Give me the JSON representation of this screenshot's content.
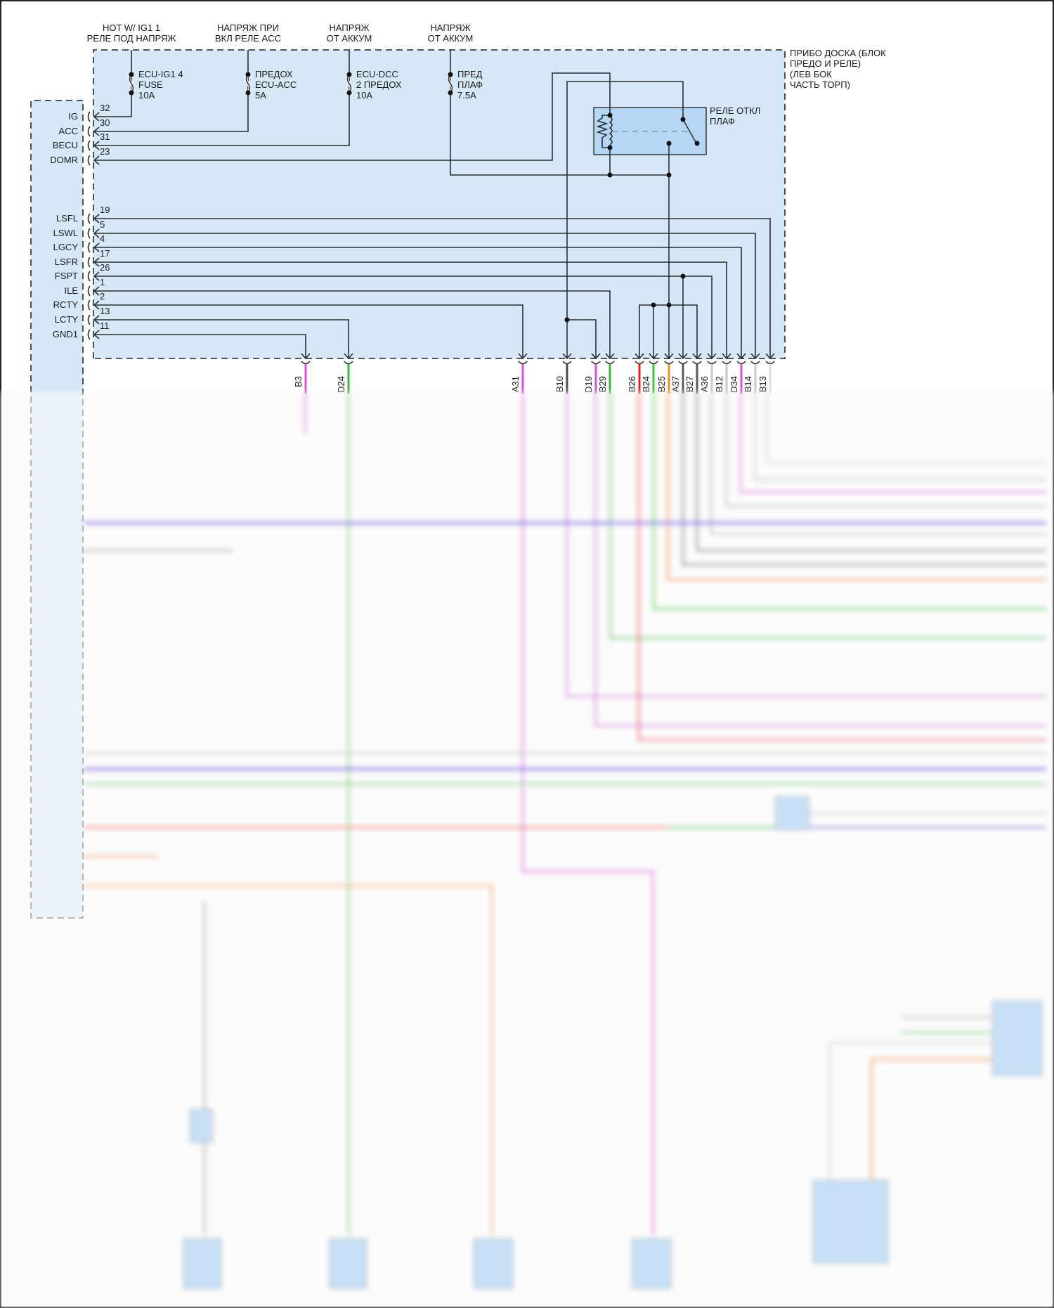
{
  "supply_labels": [
    {
      "line1": "HOT W/ IG1 1",
      "line2": "РЕЛЕ ПОД НАПРЯЖ"
    },
    {
      "line1": "НАПРЯЖ ПРИ",
      "line2": "ВКЛ РЕЛЕ ACC"
    },
    {
      "line1": "НАПРЯЖ",
      "line2": "ОТ АККУМ"
    },
    {
      "line1": "НАПРЯЖ",
      "line2": "ОТ АККУМ"
    }
  ],
  "fuses": [
    {
      "line1": "ECU-IG1 4",
      "line2": "FUSE",
      "line3": "10A"
    },
    {
      "line1": "ПРЕДОХ",
      "line2": "ECU-ACC",
      "line3": "5A"
    },
    {
      "line1": "ECU-DCC",
      "line2": "2 ПРЕДОХ",
      "line3": "10A"
    },
    {
      "line1": "ПРЕД",
      "line2": "ПЛАФ",
      "line3": "7.5A"
    }
  ],
  "block_label": [
    "ПРИБО ДОСКА (БЛОК",
    "ПРЕДО И РЕЛЕ)",
    "(ЛЕВ БОК",
    "ЧАСТЬ ТОРП)"
  ],
  "relay_label": [
    "РЕЛЕ ОТКЛ",
    "ПЛАФ"
  ],
  "ecu_pins": [
    {
      "name": "IG",
      "pin": "32"
    },
    {
      "name": "ACC",
      "pin": "30"
    },
    {
      "name": "BECU",
      "pin": "31"
    },
    {
      "name": "DOMR",
      "pin": "23"
    },
    {
      "name": "LSFL",
      "pin": "19"
    },
    {
      "name": "LSWL",
      "pin": "5"
    },
    {
      "name": "LGCY",
      "pin": "4"
    },
    {
      "name": "LSFR",
      "pin": "17"
    },
    {
      "name": "FSPT",
      "pin": "26"
    },
    {
      "name": "ILE",
      "pin": "1"
    },
    {
      "name": "RCTY",
      "pin": "2"
    },
    {
      "name": "LCTY",
      "pin": "13"
    },
    {
      "name": "GND1",
      "pin": "11"
    }
  ],
  "connectors": [
    {
      "id": "B3",
      "color": "#d94fd9"
    },
    {
      "id": "D24",
      "color": "#3cb43c"
    },
    {
      "id": "A31",
      "color": "#d94fd9"
    },
    {
      "id": "B10",
      "color": "#4a4a4a"
    },
    {
      "id": "D19",
      "color": "#d94fd9"
    },
    {
      "id": "B29",
      "color": "#3cb43c"
    },
    {
      "id": "B26",
      "color": "#e02020"
    },
    {
      "id": "B24",
      "color": "#3cc83c"
    },
    {
      "id": "B25",
      "color": "#f0901e"
    },
    {
      "id": "A37",
      "color": "#5a5a5a"
    },
    {
      "id": "B27",
      "color": "#5a5a5a"
    },
    {
      "id": "A36",
      "color": "#c8c8c8"
    },
    {
      "id": "B12",
      "color": "#c8c8c8"
    },
    {
      "id": "D34",
      "color": "#d94fd9"
    },
    {
      "id": "B14",
      "color": "#c8c8c8"
    },
    {
      "id": "B13",
      "color": "#e0e0e0"
    }
  ],
  "colors": {
    "block_fill": "#d6e8f8",
    "relay_fill": "#b5d7f5"
  }
}
